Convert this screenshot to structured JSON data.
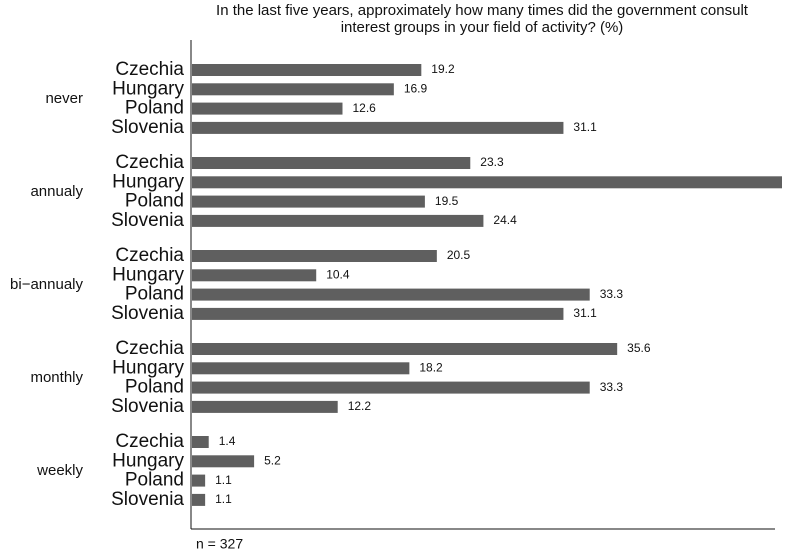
{
  "chart_data": {
    "type": "grouped_hbar",
    "title": "In the last five years, approximately how many times did the government consult interest groups in your field of activity? (%)",
    "note": "n = 327",
    "categories": [
      "never",
      "annualy",
      "bi−annualy",
      "monthly",
      "weekly"
    ],
    "color": "#5f5f5f",
    "series": [
      {
        "name": "Czechia",
        "values": [
          19.2,
          23.3,
          20.5,
          35.6,
          1.4
        ]
      },
      {
        "name": "Hungary",
        "values": [
          16.9,
          49.4,
          10.4,
          18.2,
          5.2
        ]
      },
      {
        "name": "Poland",
        "values": [
          12.6,
          19.5,
          33.3,
          33.3,
          1.1
        ]
      },
      {
        "name": "Slovenia",
        "values": [
          31.1,
          24.4,
          31.1,
          12.2,
          1.1
        ]
      }
    ]
  }
}
